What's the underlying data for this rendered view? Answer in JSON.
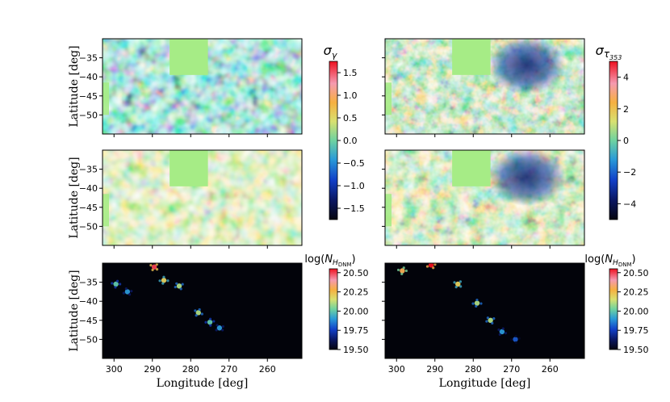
{
  "chart_data": {
    "type": "heatmap",
    "title": "",
    "shared": {
      "xlabel": "Longitude [deg]",
      "ylabel": "Latitude [deg]",
      "xlim": [
        303,
        251
      ],
      "ylim": [
        -55,
        -30
      ],
      "xticks": [
        300,
        290,
        280,
        270,
        260
      ],
      "yticks": [
        -35,
        -40,
        -45,
        -50
      ]
    },
    "panels": [
      {
        "id": "a",
        "row": 1,
        "col": 1,
        "map": "residual_gamma",
        "colorbar": "gamma"
      },
      {
        "id": "b",
        "row": 1,
        "col": 2,
        "map": "residual_tau353",
        "colorbar": "tau"
      },
      {
        "id": "c",
        "row": 2,
        "col": 1,
        "map": "residual_gamma_smoothed",
        "colorbar": "gamma"
      },
      {
        "id": "d",
        "row": 2,
        "col": 2,
        "map": "residual_tau353_smoothed",
        "colorbar": "tau"
      },
      {
        "id": "e",
        "row": 3,
        "col": 1,
        "map": "log_NH_DNM_gamma",
        "colorbar": "dnm"
      },
      {
        "id": "f",
        "row": 3,
        "col": 2,
        "map": "log_NH_DNM_dust",
        "colorbar": "dnm"
      }
    ],
    "colorbars": {
      "gamma": {
        "title": "σγ",
        "range": [
          -1.75,
          1.75
        ],
        "ticks": [
          "1.5",
          "1.0",
          "0.5",
          "0.0",
          "−0.5",
          "−1.0",
          "−1.5"
        ]
      },
      "tau": {
        "title": "στ353",
        "range": [
          -5,
          5
        ],
        "ticks": [
          "4",
          "2",
          "0",
          "−2",
          "−4"
        ]
      },
      "dnm": {
        "title": "log(NHDNM)",
        "range": [
          19.5,
          20.55
        ],
        "ticks": [
          "20.50",
          "20.25",
          "20.00",
          "19.75",
          "19.50"
        ]
      }
    },
    "masked_region": {
      "lon_range": [
        285.5,
        275.5
      ],
      "lat_range": [
        -39.5,
        -30
      ]
    },
    "dnm_features": [
      {
        "map": "gamma",
        "lon": 299.5,
        "lat": -35.5,
        "value": 20.0
      },
      {
        "map": "gamma",
        "lon": 296.5,
        "lat": -37.5,
        "value": 19.9
      },
      {
        "map": "gamma",
        "lon": 289.5,
        "lat": -31.0,
        "value": 20.5
      },
      {
        "map": "gamma",
        "lon": 287.0,
        "lat": -34.5,
        "value": 20.2
      },
      {
        "map": "gamma",
        "lon": 283.0,
        "lat": -36.0,
        "value": 20.1
      },
      {
        "map": "gamma",
        "lon": 278.0,
        "lat": -43.0,
        "value": 20.1
      },
      {
        "map": "gamma",
        "lon": 275.0,
        "lat": -45.5,
        "value": 20.0
      },
      {
        "map": "gamma",
        "lon": 272.5,
        "lat": -47.0,
        "value": 19.9
      },
      {
        "map": "dust",
        "lon": 298.5,
        "lat": -32.0,
        "value": 20.3
      },
      {
        "map": "dust",
        "lon": 291.0,
        "lat": -30.5,
        "value": 20.55
      },
      {
        "map": "dust",
        "lon": 284.0,
        "lat": -35.5,
        "value": 20.2
      },
      {
        "map": "dust",
        "lon": 279.0,
        "lat": -40.5,
        "value": 20.1
      },
      {
        "map": "dust",
        "lon": 275.5,
        "lat": -45.0,
        "value": 20.1
      },
      {
        "map": "dust",
        "lon": 272.5,
        "lat": -48.0,
        "value": 19.9
      },
      {
        "map": "dust",
        "lon": 269.0,
        "lat": -50.0,
        "value": 19.8
      }
    ]
  }
}
